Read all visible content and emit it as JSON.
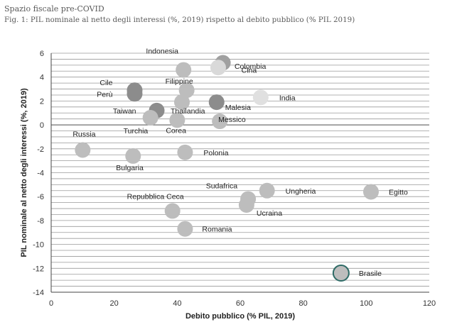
{
  "header": {
    "title": "Spazio fiscale pre-COVID",
    "subtitle": "Fig. 1: PIL nominale al netto degli interessi (%, 2019) rispetto al debito pubblico (% PIL 2019)"
  },
  "chart_data": {
    "type": "scatter",
    "xlabel": "Debito pubblico (% PIL, 2019)",
    "ylabel": "PIL nominale al netto degli interessi (%, 2019)",
    "xlim": [
      0,
      120
    ],
    "ylim": [
      -14,
      6
    ],
    "x_ticks": [
      0,
      20,
      40,
      60,
      80,
      100,
      120
    ],
    "y_ticks": [
      6,
      4,
      2,
      0,
      -2,
      -4,
      -6,
      -8,
      -10,
      -12,
      -14
    ],
    "grid": "horizontal",
    "points": [
      {
        "label": "Indonesia",
        "x": 42,
        "y": 4.6,
        "color": "#bdbdbd"
      },
      {
        "label": "Cina",
        "x": 54.5,
        "y": 5.2,
        "color": "#a0a0a0"
      },
      {
        "label": "Colombia",
        "x": 53,
        "y": 4.8,
        "color": "#d9d9d9"
      },
      {
        "label": "Filippine",
        "x": 43,
        "y": 2.9,
        "color": "#bdbdbd"
      },
      {
        "label": "Cile",
        "x": 26.5,
        "y": 2.9,
        "color": "#8c8c8c"
      },
      {
        "label": "Perù",
        "x": 26.5,
        "y": 2.6,
        "color": "#8c8c8c"
      },
      {
        "label": "India",
        "x": 66.5,
        "y": 2.3,
        "color": "#e0e0e0"
      },
      {
        "label": "Taiwan",
        "x": 33.5,
        "y": 1.2,
        "color": "#8c8c8c"
      },
      {
        "label": "Malesia",
        "x": 52.5,
        "y": 1.9,
        "color": "#8c8c8c"
      },
      {
        "label": "Thailandia",
        "x": 41.5,
        "y": 1.9,
        "color": "#bdbdbd"
      },
      {
        "label": "Turchia",
        "x": 31.5,
        "y": 0.6,
        "color": "#bdbdbd"
      },
      {
        "label": "Corea",
        "x": 40,
        "y": 0.4,
        "color": "#bdbdbd"
      },
      {
        "label": "Messico",
        "x": 53.5,
        "y": 0.3,
        "color": "#bdbdbd"
      },
      {
        "label": "Russia",
        "x": 10,
        "y": -2.1,
        "color": "#bdbdbd"
      },
      {
        "label": "Bulgaria",
        "x": 26,
        "y": -2.6,
        "color": "#bdbdbd"
      },
      {
        "label": "Polonia",
        "x": 42.5,
        "y": -2.3,
        "color": "#bdbdbd"
      },
      {
        "label": "Sudafrica",
        "x": 62.5,
        "y": -6.2,
        "color": "#bdbdbd"
      },
      {
        "label": "Ungheria",
        "x": 68.5,
        "y": -5.5,
        "color": "#bdbdbd"
      },
      {
        "label": "Egitto",
        "x": 101.5,
        "y": -5.6,
        "color": "#bdbdbd"
      },
      {
        "label": "Repubblica Ceca",
        "x": 38.5,
        "y": -7.2,
        "color": "#bdbdbd"
      },
      {
        "label": "Ucraina",
        "x": 62,
        "y": -6.7,
        "color": "#bdbdbd"
      },
      {
        "label": "Romania",
        "x": 42.5,
        "y": -8.7,
        "color": "#bdbdbd"
      },
      {
        "label": "Brasile",
        "x": 92,
        "y": -12.4,
        "color": "#bdbdbd",
        "outline": "#2e6b66"
      }
    ]
  }
}
